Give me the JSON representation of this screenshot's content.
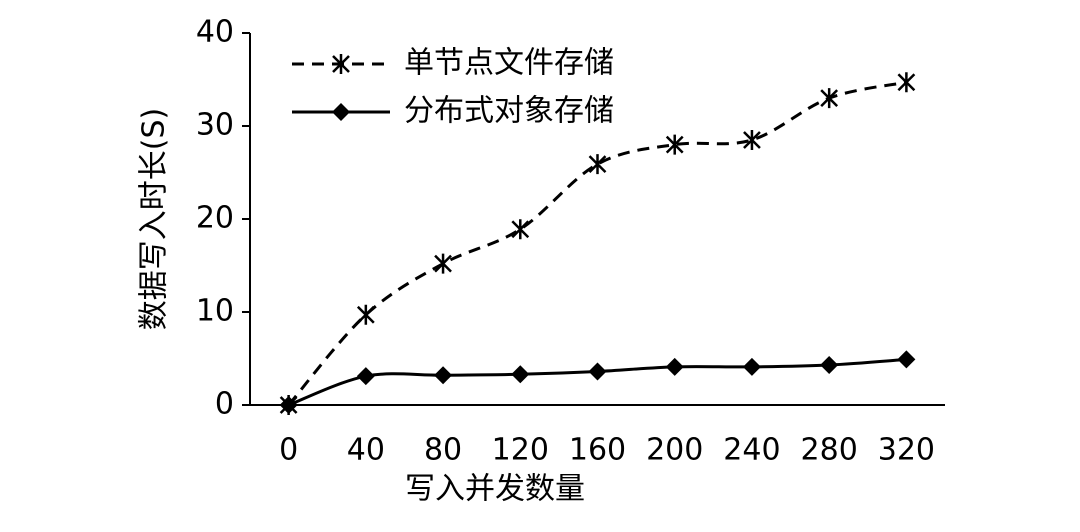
{
  "chart_data": {
    "type": "line",
    "x_label": "写入并发数量",
    "y_label": "数据写入时长(S)",
    "x": [
      0,
      40,
      80,
      120,
      160,
      200,
      240,
      280,
      320
    ],
    "series": [
      {
        "name": "单节点文件存储",
        "color": "#000000",
        "style": "dashed",
        "marker": "asterisk",
        "smooth": true,
        "values": [
          0,
          9.7,
          15.2,
          18.9,
          25.9,
          28,
          28.5,
          33,
          34.7
        ]
      },
      {
        "name": "分布式对象存储",
        "color": "#000000",
        "style": "solid",
        "marker": "diamond",
        "smooth": true,
        "values": [
          0,
          3.1,
          3.2,
          3.3,
          3.6,
          4.1,
          4.1,
          4.3,
          4.9
        ]
      }
    ],
    "xlim": [
      -20,
      340
    ],
    "xticks": [
      0,
      40,
      80,
      120,
      160,
      200,
      240,
      280,
      320
    ],
    "ylim": [
      0,
      40
    ],
    "yticks": [
      0,
      10,
      20,
      30,
      40
    ],
    "grid": false,
    "legend": "upper left"
  }
}
